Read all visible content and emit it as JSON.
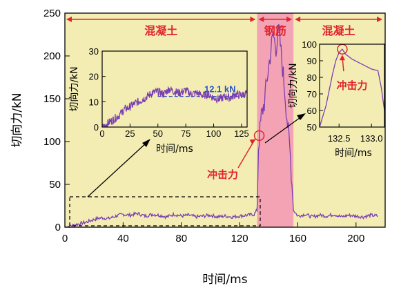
{
  "colors": {
    "plot_bg": "#f3edb4",
    "steel_band": "#f4a3b4",
    "signal": "#7a3fb0",
    "annotation_red": "#e0242e",
    "annotation_blue": "#2a55c8"
  },
  "chart_data": [
    {
      "type": "line",
      "xlabel": "时间/ms",
      "ylabel": "切向力/kN",
      "xlim": [
        0,
        220
      ],
      "ylim": [
        0,
        250
      ],
      "xticks": [
        "0",
        "40",
        "80",
        "120",
        "160",
        "200"
      ],
      "yticks": [
        "0",
        "50",
        "100",
        "150",
        "200",
        "250"
      ],
      "grid": false,
      "regions": [
        {
          "label": "混凝土",
          "x_range": [
            0,
            132
          ]
        },
        {
          "label": "钢筋",
          "x_range": [
            132,
            157
          ]
        },
        {
          "label": "混凝土",
          "x_range": [
            157,
            220
          ]
        }
      ],
      "annotation": {
        "label": "冲击力",
        "x": 132.5,
        "y": 97
      },
      "series": [
        {
          "x": [
            0,
            5,
            10,
            15,
            20,
            25,
            30,
            35,
            40,
            45,
            50,
            55,
            60,
            65,
            70,
            75,
            80,
            85,
            90,
            95,
            100,
            105,
            110,
            115,
            120,
            125,
            130,
            132,
            133,
            135,
            137,
            139,
            141,
            143,
            145,
            147,
            149,
            151,
            153,
            155,
            157,
            160,
            165,
            170,
            175,
            180,
            185,
            190,
            195,
            200,
            205,
            210,
            215
          ],
          "values": [
            0,
            2,
            4,
            6,
            9,
            11,
            10,
            13,
            15,
            14,
            16,
            13,
            15,
            14,
            12,
            15,
            13,
            14,
            12,
            13,
            14,
            12,
            13,
            12,
            13,
            14,
            15,
            20,
            95,
            130,
            145,
            175,
            200,
            225,
            210,
            230,
            195,
            160,
            120,
            80,
            20,
            13,
            15,
            12,
            14,
            13,
            15,
            12,
            14,
            13,
            12,
            14,
            13
          ]
        }
      ]
    },
    {
      "type": "line",
      "xlabel": "时间/ms",
      "ylabel": "切向力/kN",
      "xlim": [
        0,
        130
      ],
      "ylim": [
        0,
        30
      ],
      "xticks": [
        "0",
        "25",
        "50",
        "75",
        "100",
        "125"
      ],
      "yticks": [
        "0",
        "10",
        "20",
        "30"
      ],
      "reference_line": {
        "y": 12.1,
        "label": "12.1 kN"
      },
      "series": [
        {
          "x": [
            0,
            5,
            10,
            15,
            20,
            25,
            30,
            35,
            40,
            45,
            50,
            55,
            60,
            65,
            70,
            75,
            80,
            85,
            90,
            95,
            100,
            105,
            110,
            115,
            120,
            125,
            130
          ],
          "values": [
            0,
            1.5,
            3,
            4.5,
            7,
            8,
            9.5,
            10.5,
            12,
            13.5,
            14,
            13,
            15,
            14,
            13.5,
            14.5,
            13,
            13.5,
            12.5,
            13,
            11.5,
            11,
            12,
            11.5,
            13,
            12.5,
            13.5
          ]
        }
      ]
    },
    {
      "type": "line",
      "xlabel": "时间/ms",
      "ylabel": "切向力/kN",
      "xlim": [
        132.2,
        133.2
      ],
      "ylim": [
        50,
        100
      ],
      "xticks": [
        "132.5",
        "133.0"
      ],
      "yticks": [
        "50",
        "60",
        "70",
        "80",
        "90",
        "100"
      ],
      "annotation": {
        "label": "冲击力",
        "x": 132.55,
        "y": 97
      },
      "series": [
        {
          "x": [
            132.2,
            132.3,
            132.4,
            132.45,
            132.5,
            132.55,
            132.6,
            132.7,
            132.8,
            132.9,
            133.0,
            133.1,
            133.15,
            133.2
          ],
          "values": [
            50,
            63,
            82,
            90,
            95,
            97,
            94,
            91,
            89,
            87,
            85,
            84,
            74,
            60
          ]
        }
      ]
    }
  ]
}
